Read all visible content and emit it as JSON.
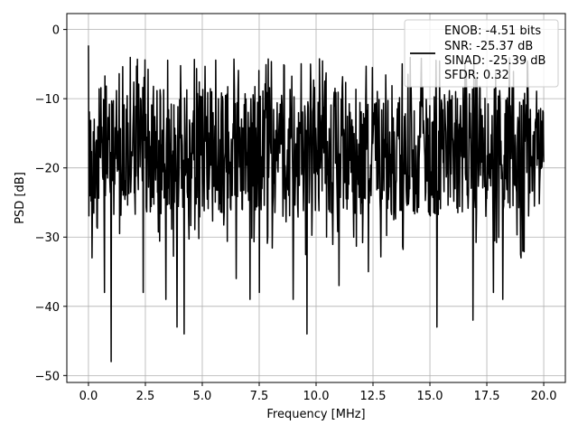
{
  "chart_data": {
    "type": "line",
    "title": "",
    "xlabel": "Frequency [MHz]",
    "ylabel": "PSD [dB]",
    "xlim": [
      -0.95,
      20.95
    ],
    "ylim": [
      -51,
      2.3
    ],
    "x_ticks": [
      0.0,
      2.5,
      5.0,
      7.5,
      10.0,
      12.5,
      15.0,
      17.5,
      20.0
    ],
    "x_tick_labels": [
      "0.0",
      "2.5",
      "5.0",
      "7.5",
      "10.0",
      "12.5",
      "15.0",
      "17.5",
      "20.0"
    ],
    "y_ticks": [
      0,
      -10,
      -20,
      -30,
      -40,
      -50
    ],
    "y_tick_labels": [
      "0",
      "−10",
      "−20",
      "−30",
      "−40",
      "−50"
    ],
    "grid": true,
    "legend_position": "top-right",
    "legend_entries": [
      "ENOB: -4.51 bits",
      "SNR: -25.37 dB",
      "SINAD: -25.39 dB",
      "SFDR: 0.32"
    ],
    "series_color": "#000000",
    "series": [
      {
        "x_start": 0.0,
        "x_end": 20.0,
        "n_points": 1024,
        "description_values": {
          "peak_near_zero_db": -2.3,
          "typical_upper_envelope_db": -8,
          "typical_lower_envelope_db": -27,
          "notable_dips": [
            {
              "x": 0.15,
              "y": -33
            },
            {
              "x": 0.7,
              "y": -38
            },
            {
              "x": 1.0,
              "y": -48
            },
            {
              "x": 2.4,
              "y": -38
            },
            {
              "x": 3.4,
              "y": -39
            },
            {
              "x": 3.9,
              "y": -43
            },
            {
              "x": 4.2,
              "y": -44
            },
            {
              "x": 6.5,
              "y": -36
            },
            {
              "x": 7.1,
              "y": -39
            },
            {
              "x": 7.5,
              "y": -38
            },
            {
              "x": 9.0,
              "y": -39
            },
            {
              "x": 9.6,
              "y": -44
            },
            {
              "x": 11.0,
              "y": -37
            },
            {
              "x": 12.3,
              "y": -35
            },
            {
              "x": 15.3,
              "y": -43
            },
            {
              "x": 16.9,
              "y": -42
            },
            {
              "x": 17.8,
              "y": -38
            },
            {
              "x": 18.2,
              "y": -39
            },
            {
              "x": 19.0,
              "y": -33
            }
          ]
        }
      }
    ]
  },
  "colors": {
    "line": "#000000",
    "grid": "#b0b0b0",
    "frame": "#000000",
    "background": "#ffffff"
  }
}
